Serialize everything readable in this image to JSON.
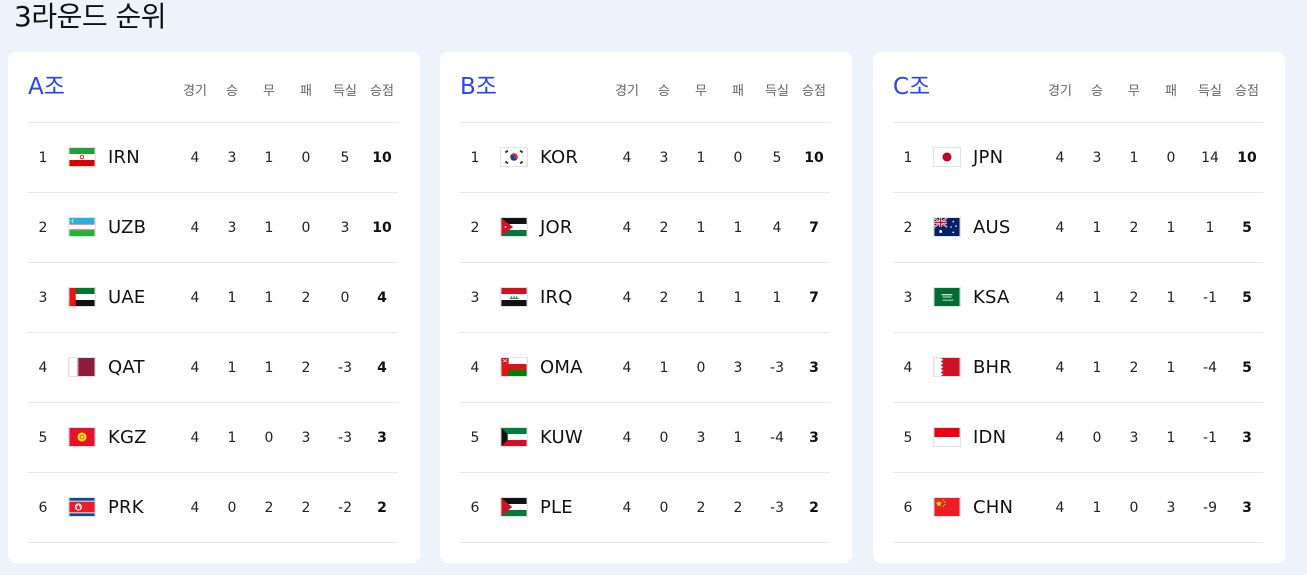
{
  "page_title": "3라운드 순위",
  "columns": {
    "played": "경기",
    "won": "승",
    "drawn": "무",
    "lost": "패",
    "gd": "득실",
    "pts": "승점"
  },
  "groups": [
    {
      "name": "A조",
      "rows": [
        {
          "rank": "1",
          "team": "IRN",
          "flag": "iran-flag-icon",
          "played": "4",
          "won": "3",
          "drawn": "1",
          "lost": "0",
          "gd": "5",
          "pts": "10"
        },
        {
          "rank": "2",
          "team": "UZB",
          "flag": "uzbekistan-flag-icon",
          "played": "4",
          "won": "3",
          "drawn": "1",
          "lost": "0",
          "gd": "3",
          "pts": "10"
        },
        {
          "rank": "3",
          "team": "UAE",
          "flag": "uae-flag-icon",
          "played": "4",
          "won": "1",
          "drawn": "1",
          "lost": "2",
          "gd": "0",
          "pts": "4"
        },
        {
          "rank": "4",
          "team": "QAT",
          "flag": "qatar-flag-icon",
          "played": "4",
          "won": "1",
          "drawn": "1",
          "lost": "2",
          "gd": "-3",
          "pts": "4"
        },
        {
          "rank": "5",
          "team": "KGZ",
          "flag": "kyrgyzstan-flag-icon",
          "played": "4",
          "won": "1",
          "drawn": "0",
          "lost": "3",
          "gd": "-3",
          "pts": "3"
        },
        {
          "rank": "6",
          "team": "PRK",
          "flag": "north-korea-flag-icon",
          "played": "4",
          "won": "0",
          "drawn": "2",
          "lost": "2",
          "gd": "-2",
          "pts": "2"
        }
      ]
    },
    {
      "name": "B조",
      "rows": [
        {
          "rank": "1",
          "team": "KOR",
          "flag": "korea-flag-icon",
          "played": "4",
          "won": "3",
          "drawn": "1",
          "lost": "0",
          "gd": "5",
          "pts": "10"
        },
        {
          "rank": "2",
          "team": "JOR",
          "flag": "jordan-flag-icon",
          "played": "4",
          "won": "2",
          "drawn": "1",
          "lost": "1",
          "gd": "4",
          "pts": "7"
        },
        {
          "rank": "3",
          "team": "IRQ",
          "flag": "iraq-flag-icon",
          "played": "4",
          "won": "2",
          "drawn": "1",
          "lost": "1",
          "gd": "1",
          "pts": "7"
        },
        {
          "rank": "4",
          "team": "OMA",
          "flag": "oman-flag-icon",
          "played": "4",
          "won": "1",
          "drawn": "0",
          "lost": "3",
          "gd": "-3",
          "pts": "3"
        },
        {
          "rank": "5",
          "team": "KUW",
          "flag": "kuwait-flag-icon",
          "played": "4",
          "won": "0",
          "drawn": "3",
          "lost": "1",
          "gd": "-4",
          "pts": "3"
        },
        {
          "rank": "6",
          "team": "PLE",
          "flag": "palestine-flag-icon",
          "played": "4",
          "won": "0",
          "drawn": "2",
          "lost": "2",
          "gd": "-3",
          "pts": "2"
        }
      ]
    },
    {
      "name": "C조",
      "rows": [
        {
          "rank": "1",
          "team": "JPN",
          "flag": "japan-flag-icon",
          "played": "4",
          "won": "3",
          "drawn": "1",
          "lost": "0",
          "gd": "14",
          "pts": "10"
        },
        {
          "rank": "2",
          "team": "AUS",
          "flag": "australia-flag-icon",
          "played": "4",
          "won": "1",
          "drawn": "2",
          "lost": "1",
          "gd": "1",
          "pts": "5"
        },
        {
          "rank": "3",
          "team": "KSA",
          "flag": "saudi-arabia-flag-icon",
          "played": "4",
          "won": "1",
          "drawn": "2",
          "lost": "1",
          "gd": "-1",
          "pts": "5"
        },
        {
          "rank": "4",
          "team": "BHR",
          "flag": "bahrain-flag-icon",
          "played": "4",
          "won": "1",
          "drawn": "2",
          "lost": "1",
          "gd": "-4",
          "pts": "5"
        },
        {
          "rank": "5",
          "team": "IDN",
          "flag": "indonesia-flag-icon",
          "played": "4",
          "won": "0",
          "drawn": "3",
          "lost": "1",
          "gd": "-1",
          "pts": "3"
        },
        {
          "rank": "6",
          "team": "CHN",
          "flag": "china-flag-icon",
          "played": "4",
          "won": "1",
          "drawn": "0",
          "lost": "3",
          "gd": "-9",
          "pts": "3"
        }
      ]
    }
  ],
  "colors": {
    "background": "#edf2fb",
    "card": "#ffffff",
    "group_name": "#2a44ee",
    "divider": "#e6e8ee",
    "header_text": "#666666"
  }
}
